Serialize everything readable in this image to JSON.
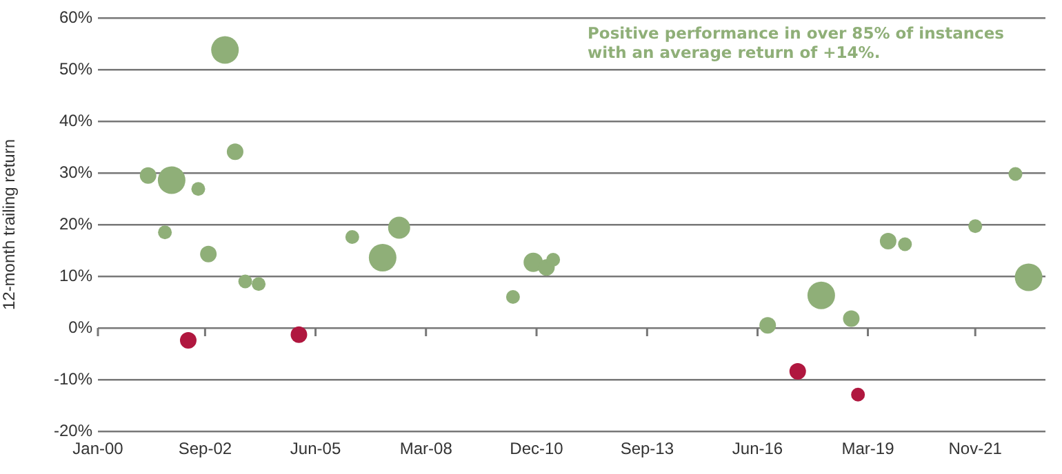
{
  "chart_data": {
    "type": "bubble",
    "ylabel": "12-month trailing return",
    "annotations": [
      "Positive performance in over 85% of instances with an average return of +14%."
    ],
    "series": [
      {
        "color": "#8faf78",
        "x": [
          "2001-04",
          "2001-11",
          "2001-09",
          "2002-07",
          "2002-10",
          "2003-03",
          "2003-06",
          "2003-09",
          "2004-01",
          "2006-05",
          "2007-02",
          "2007-07",
          "2010-05",
          "2010-11",
          "2011-03",
          "2011-05",
          "2016-09",
          "2018-01",
          "2018-10",
          "2019-09",
          "2020-02",
          "2021-11",
          "2022-11",
          "2023-03"
        ],
        "values": [
          29.5,
          28.6,
          18.5,
          26.9,
          14.3,
          53.8,
          34.1,
          9.0,
          8.5,
          17.6,
          13.6,
          19.4,
          6.0,
          12.7,
          11.7,
          13.2,
          0.5,
          6.3,
          1.8,
          16.8,
          16.2,
          19.7,
          29.8,
          9.8
        ],
        "sizes": [
          0.36,
          1,
          0.25,
          0.25,
          0.36,
          1,
          0.36,
          0.25,
          0.25,
          0.25,
          1,
          0.64,
          0.25,
          0.49,
          0.36,
          0.25,
          0.36,
          1,
          0.36,
          0.36,
          0.25,
          0.25,
          0.25,
          1
        ]
      },
      {
        "color": "#b0173f",
        "x": [
          "2002-04",
          "2005-01",
          "2017-06",
          "2018-12"
        ],
        "values": [
          -2.4,
          -1.3,
          -8.4,
          -12.9
        ],
        "sizes": [
          0.36,
          0.36,
          0.36,
          0.25
        ]
      }
    ],
    "xlim": [
      "2000-01",
      "2023-08"
    ],
    "xticks": [
      {
        "value": "2000-01",
        "label": "Jan-00"
      },
      {
        "value": "2002-09",
        "label": "Sep-02"
      },
      {
        "value": "2005-06",
        "label": "Jun-05"
      },
      {
        "value": "2008-03",
        "label": "Mar-08"
      },
      {
        "value": "2010-12",
        "label": "Dec-10"
      },
      {
        "value": "2013-09",
        "label": "Sep-13"
      },
      {
        "value": "2016-06",
        "label": "Jun-16"
      },
      {
        "value": "2019-03",
        "label": "Mar-19"
      },
      {
        "value": "2021-11",
        "label": "Nov-21"
      }
    ],
    "ylim": [
      -20,
      60
    ],
    "yticks": [
      {
        "value": -20,
        "label": "-20%"
      },
      {
        "value": -10,
        "label": "-10%"
      },
      {
        "value": 0,
        "label": "0%"
      },
      {
        "value": 10,
        "label": "10%"
      },
      {
        "value": 20,
        "label": "20%"
      },
      {
        "value": 30,
        "label": "30%"
      },
      {
        "value": 40,
        "label": "40%"
      },
      {
        "value": 50,
        "label": "50%"
      },
      {
        "value": 60,
        "label": "60%"
      }
    ],
    "grid": "y",
    "legend": false
  }
}
